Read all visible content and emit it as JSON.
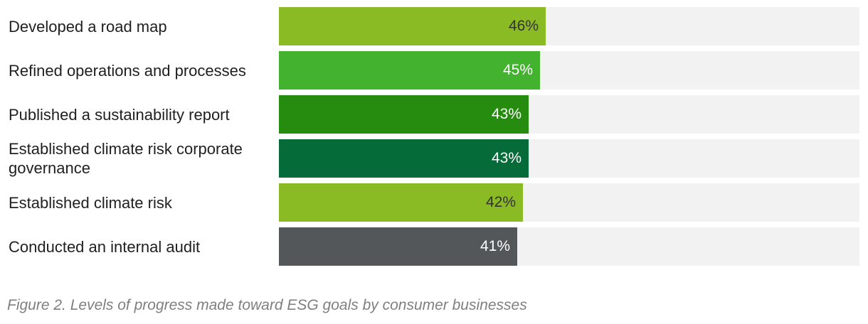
{
  "chart_data": {
    "type": "bar",
    "orientation": "horizontal",
    "categories": [
      "Developed a road map",
      "Refined operations and processes",
      "Published a sustainability report",
      "Established climate risk corporate governance",
      "Established climate risk",
      "Conducted an internal audit"
    ],
    "values": [
      46,
      45,
      43,
      43,
      42,
      41
    ],
    "value_labels": [
      "46%",
      "45%",
      "43%",
      "43%",
      "42%",
      "41%"
    ],
    "unit": "%",
    "xlim": [
      0,
      100
    ],
    "grid": false,
    "legend": "none",
    "bar_colors": [
      "#8aba24",
      "#42b22f",
      "#268c10",
      "#056b39",
      "#8aba24",
      "#54575a"
    ],
    "value_label_colors": [
      "#333333",
      "#ffffff",
      "#ffffff",
      "#ffffff",
      "#333333",
      "#ffffff"
    ],
    "track_color": "#f2f2f2"
  },
  "caption": "Figure 2. Levels of progress made toward ESG goals by consumer businesses"
}
